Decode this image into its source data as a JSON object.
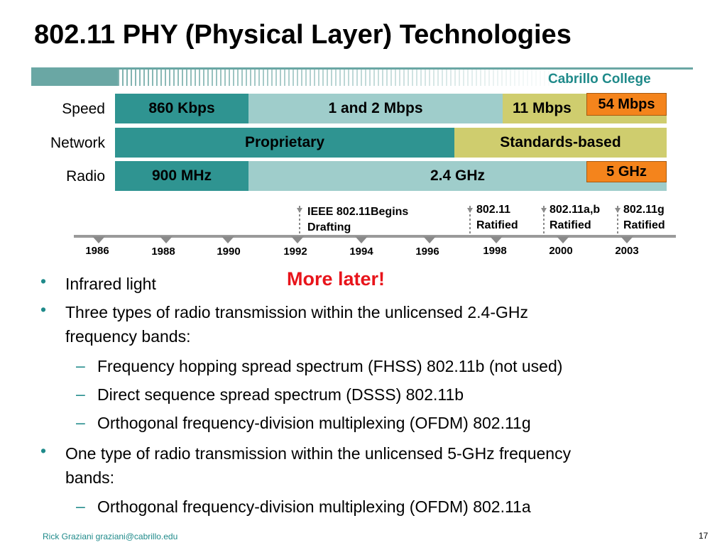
{
  "slide": {
    "title": "802.11 PHY (Physical Layer) Technologies",
    "college": "Cabrillo College",
    "footer": "Rick Graziani  graziani@cabrillo.edu",
    "page_number": "17"
  },
  "chart": {
    "rows": {
      "speed": "Speed",
      "network": "Network",
      "radio": "Radio"
    },
    "speed": {
      "seg1": "860 Kbps",
      "seg2": "1 and 2 Mbps",
      "seg3": "11 Mbps",
      "tag": "54 Mbps"
    },
    "network": {
      "seg1": "Proprietary",
      "seg2": "Standards-based"
    },
    "radio": {
      "seg1": "900 MHz",
      "seg2": "2.4 GHz",
      "tag": "5 GHz"
    },
    "years": [
      "1986",
      "1988",
      "1990",
      "1992",
      "1994",
      "1996",
      "1998",
      "2000",
      "2003"
    ],
    "events": {
      "e1_line1": "IEEE 802.11Begins",
      "e1_line2": "Drafting",
      "e2_line1": "802.11",
      "e2_line2": "Ratified",
      "e3_line1": "802.11a,b",
      "e3_line2": "Ratified",
      "e4_line1": "802.11g",
      "e4_line2": "Ratified"
    },
    "callout": "More later!",
    "colors": {
      "teal": "#2f9491",
      "light_teal": "#9fcdcb",
      "olive": "#cfcd6e",
      "orange": "#f4841c",
      "callout_red": "#e8141b"
    }
  },
  "bullets": {
    "b1": "Infrared light",
    "b2_line1": "Three types of radio transmission within the unlicensed 2.4-GHz",
    "b2_line2": "frequency bands:",
    "b2_sub1": "Frequency hopping spread spectrum (FHSS) 802.11b (not used)",
    "b2_sub2": "Direct sequence spread spectrum (DSSS) 802.11b",
    "b2_sub3": "Orthogonal frequency-division multiplexing (OFDM) 802.11g",
    "b3_line1": "One type of radio transmission within the unlicensed 5-GHz frequency",
    "b3_line2": "bands:",
    "b3_sub1": "Orthogonal frequency-division multiplexing (OFDM) 802.11a"
  }
}
